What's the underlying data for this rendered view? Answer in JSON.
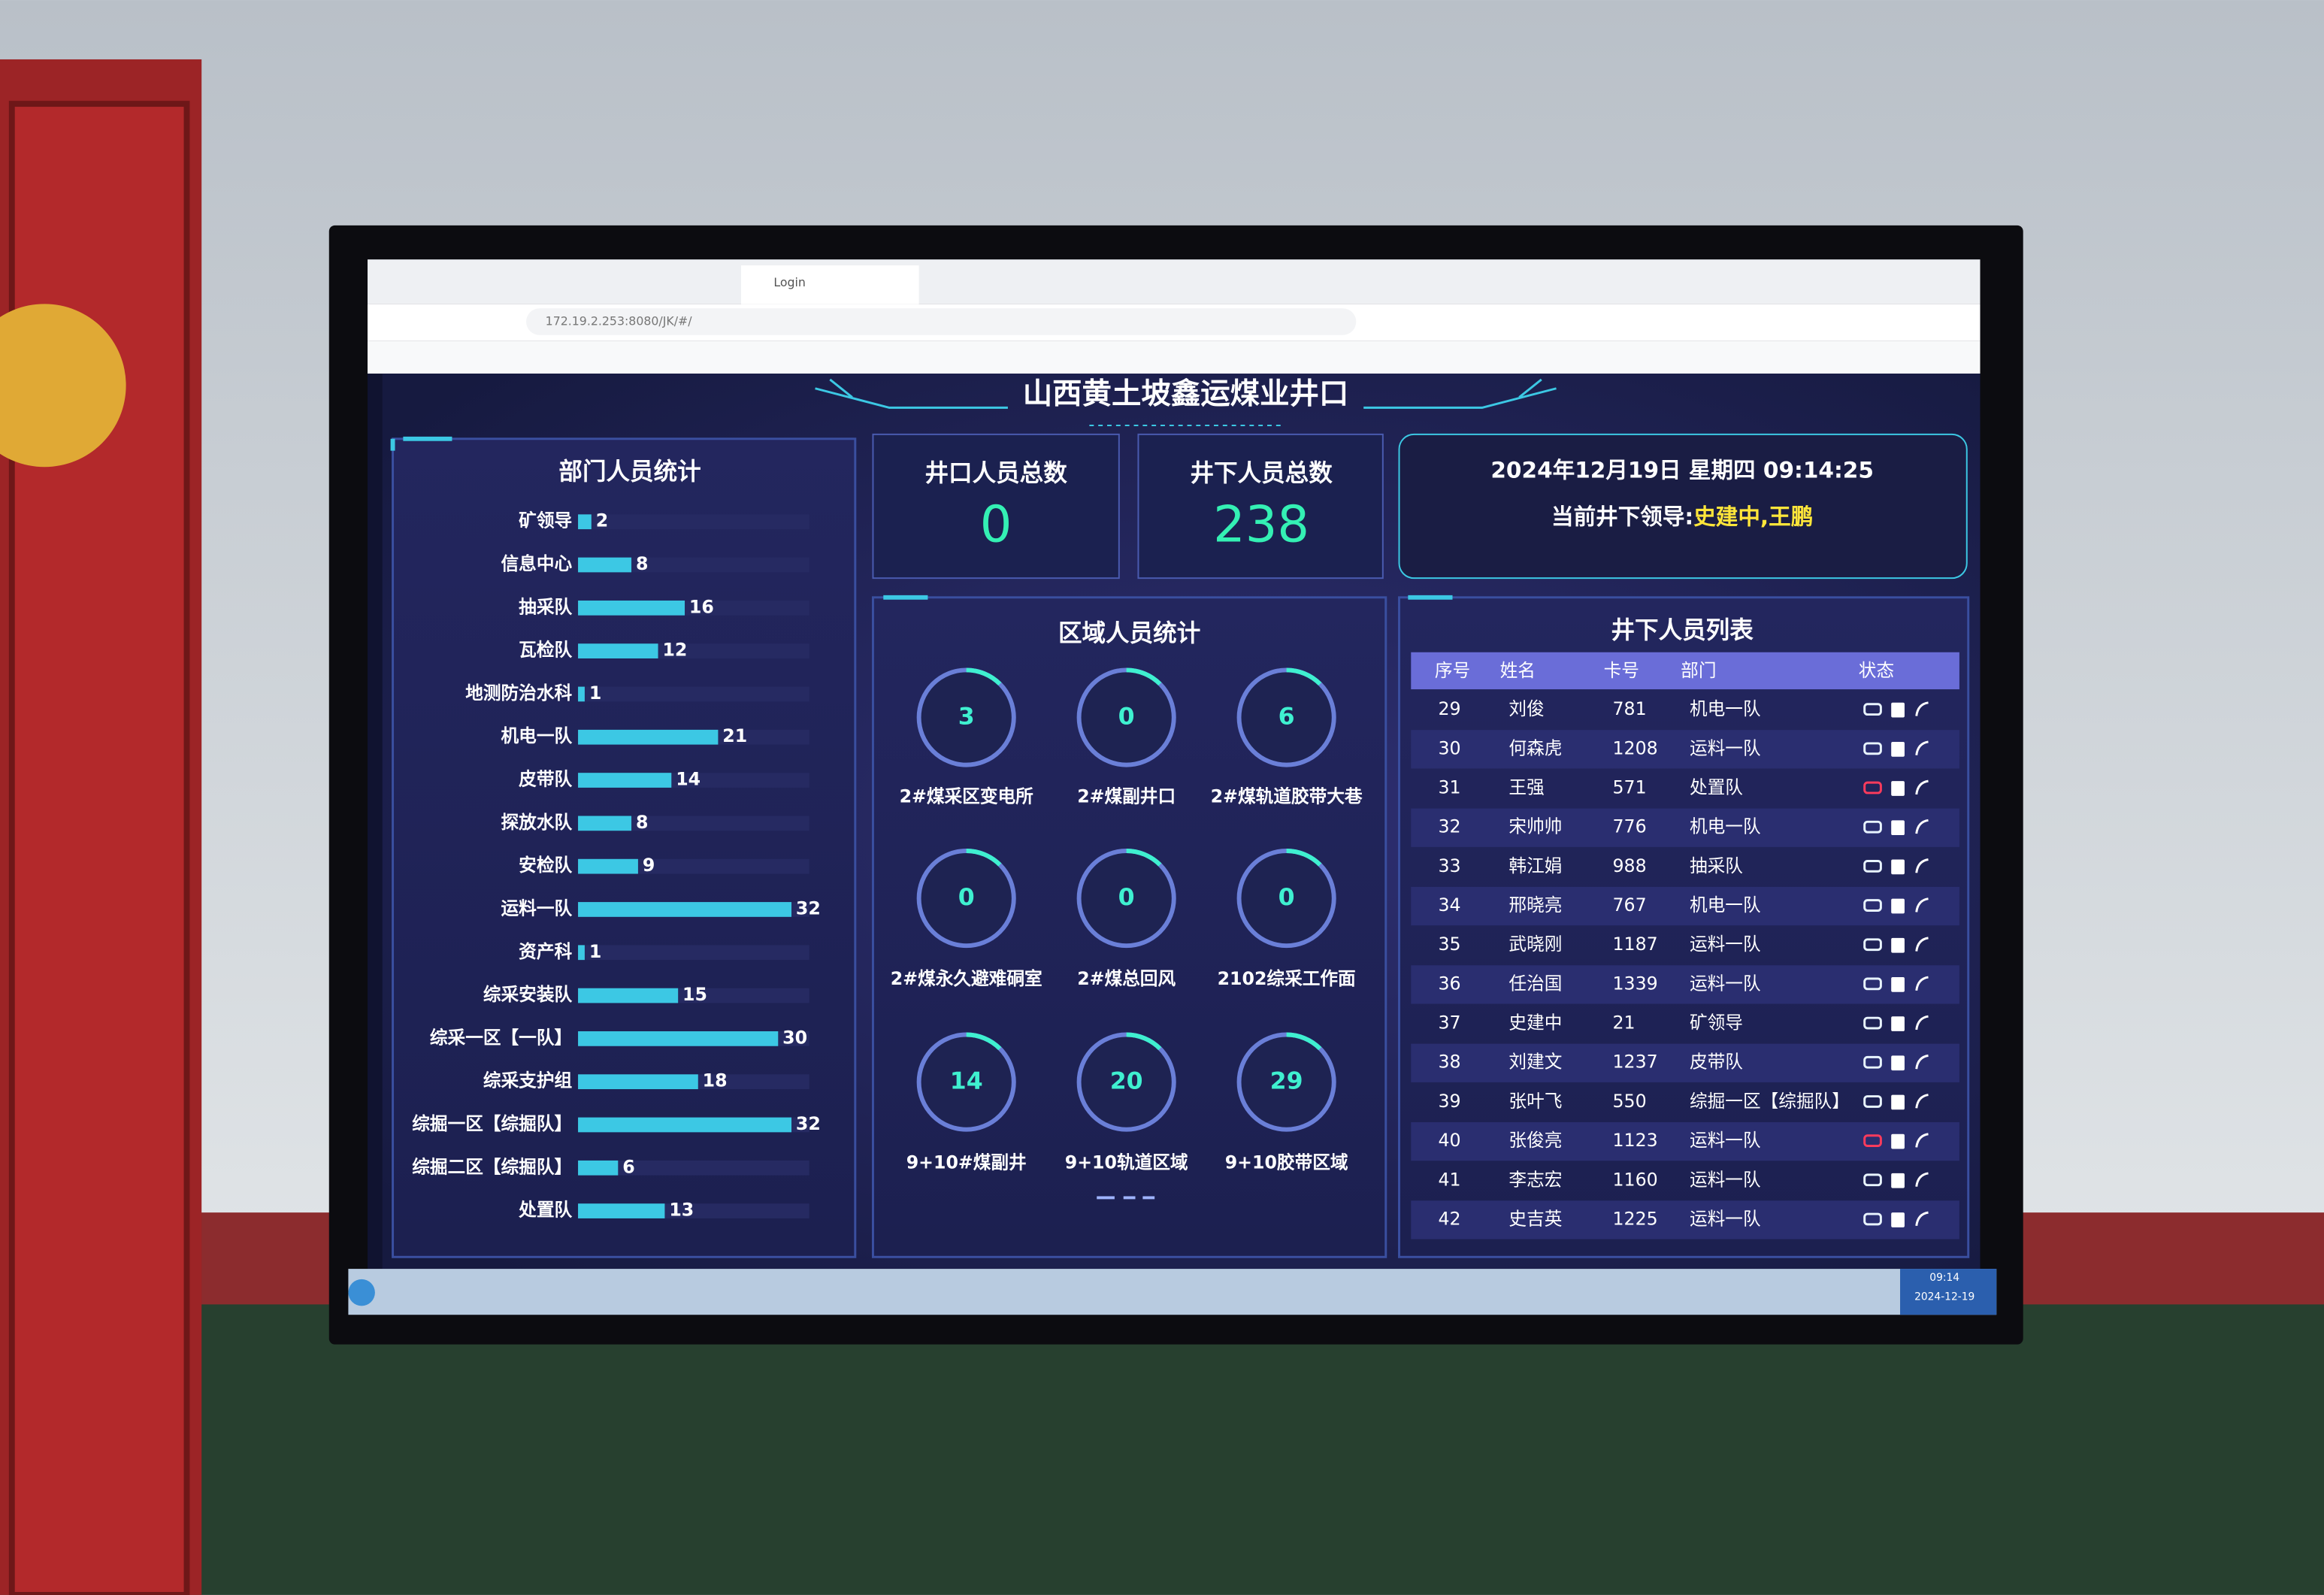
{
  "browser": {
    "tab": "Login",
    "url": "172.19.2.253:8080/JK/#/"
  },
  "header": {
    "title": "山西黄土坡鑫运煤业井口"
  },
  "department_stats": {
    "title": "部门人员统计",
    "categories": [
      "矿领导",
      "信息中心",
      "抽采队",
      "瓦检队",
      "地测防治水科",
      "机电一队",
      "皮带队",
      "探放水队",
      "安检队",
      "运料一队",
      "资产科",
      "综采安装队",
      "综采一区【一队】",
      "综采支护组",
      "综掘一区【综掘队】",
      "综掘二区【综掘队】",
      "处置队"
    ],
    "values": [
      2,
      8,
      16,
      12,
      1,
      21,
      14,
      8,
      9,
      32,
      1,
      15,
      30,
      18,
      32,
      6,
      13
    ],
    "color": "#3cc8e4"
  },
  "totals": [
    {
      "label": "井口人员总数",
      "value": 0
    },
    {
      "label": "井下人员总数",
      "value": 238
    }
  ],
  "clock": {
    "datetime": "2024年12月19日 星期四 09:14:25",
    "leader_label": "当前井下领导:",
    "leader": "史建中,王鹏"
  },
  "zone_stats": {
    "title": "区域人员统计",
    "zones": [
      {
        "name": "2#煤采区变电所",
        "count": 3
      },
      {
        "name": "2#煤副井口",
        "count": 0
      },
      {
        "name": "2#煤轨道胶带大巷",
        "count": 6
      },
      {
        "name": "2#煤永久避难硐室",
        "count": 0
      },
      {
        "name": "2#煤总回风",
        "count": 0
      },
      {
        "name": "2102综采工作面",
        "count": 0
      },
      {
        "name": "9+10#煤副井",
        "count": 14
      },
      {
        "name": "9+10轨道区域",
        "count": 20
      },
      {
        "name": "9+10胶带区域",
        "count": 29
      }
    ]
  },
  "personnel": {
    "title": "井下人员列表",
    "columns": [
      "序号",
      "姓名",
      "卡号",
      "部门",
      "状态"
    ],
    "rows": [
      [
        29,
        "刘俊",
        781,
        "机电一队"
      ],
      [
        30,
        "何森虎",
        1208,
        "运料一队"
      ],
      [
        31,
        "王强",
        571,
        "处置队"
      ],
      [
        32,
        "宋帅帅",
        776,
        "机电一队"
      ],
      [
        33,
        "韩江娟",
        988,
        "抽采队"
      ],
      [
        34,
        "邢晓亮",
        767,
        "机电一队"
      ],
      [
        35,
        "武晓刚",
        1187,
        "运料一队"
      ],
      [
        36,
        "任治国",
        1339,
        "运料一队"
      ],
      [
        37,
        "史建中",
        21,
        "矿领导"
      ],
      [
        38,
        "刘建文",
        1237,
        "皮带队"
      ],
      [
        39,
        "张叶飞",
        550,
        "综掘一区【综掘队】"
      ],
      [
        40,
        "张俊亮",
        1123,
        "运料一队"
      ],
      [
        41,
        "李志宏",
        1160,
        "运料一队"
      ],
      [
        42,
        "史吉英",
        1225,
        "运料一队"
      ]
    ],
    "battery_colors": [
      "#e8f4ff",
      "#e8f4ff",
      "#ff3b5c",
      "#e8f4ff",
      "#e8f4ff",
      "#e8f4ff",
      "#e8f4ff",
      "#e8f4ff",
      "#e8f4ff",
      "#e8f4ff",
      "#e8f4ff",
      "#ff3b5c",
      "#e8f4ff",
      "#e8f4ff"
    ]
  },
  "taskbar": {
    "time": "09:14",
    "date": "2024-12-19"
  }
}
